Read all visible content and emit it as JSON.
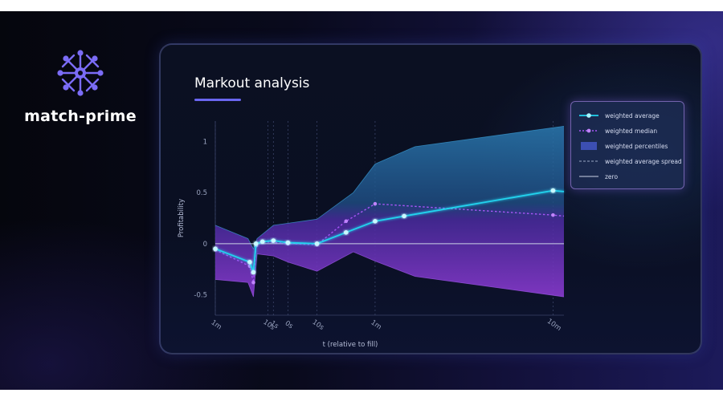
{
  "brand": {
    "name": "match-prime",
    "logo_icon": "network-star-icon",
    "accent": "#7b6cf6"
  },
  "panel": {
    "title": "Markout analysis"
  },
  "chart_data": {
    "type": "line",
    "title": "Markout analysis",
    "xlabel": "t (relative to fill)",
    "ylabel": "Profitability",
    "x_tick_labels": [
      "1m",
      "10s",
      "1s",
      "0s",
      "10s",
      "1m",
      "10m"
    ],
    "x_tick_positions": [
      0,
      1.45,
      1.6,
      2.0,
      2.8,
      4.4,
      9.3
    ],
    "y_ticks": [
      1,
      0.5,
      0,
      -0.5
    ],
    "xlim": [
      0,
      9.6
    ],
    "ylim": [
      -0.7,
      1.2
    ],
    "grid": "vertical dashed at x ticks",
    "legend_placement": "top-right",
    "series": [
      {
        "name": "weighted average",
        "color": "#22d3ee",
        "style": "solid",
        "marker": "circle",
        "points": [
          [
            0,
            -0.05
          ],
          [
            0.95,
            -0.18
          ],
          [
            1.05,
            -0.28
          ],
          [
            1.12,
            0.0
          ],
          [
            1.3,
            0.02
          ],
          [
            1.6,
            0.03
          ],
          [
            2.0,
            0.01
          ],
          [
            2.8,
            0.0
          ],
          [
            3.6,
            0.11
          ],
          [
            4.4,
            0.22
          ],
          [
            5.2,
            0.27
          ],
          [
            9.3,
            0.52
          ],
          [
            9.6,
            0.51
          ]
        ]
      },
      {
        "name": "weighted median",
        "color": "#a855f7",
        "style": "dashed",
        "marker": "circle",
        "points": [
          [
            0,
            -0.06
          ],
          [
            0.95,
            -0.22
          ],
          [
            1.05,
            -0.38
          ],
          [
            1.12,
            -0.02
          ],
          [
            1.3,
            0.02
          ],
          [
            2.0,
            0.0
          ],
          [
            2.8,
            -0.01
          ],
          [
            3.6,
            0.22
          ],
          [
            4.4,
            0.39
          ],
          [
            9.3,
            0.28
          ],
          [
            9.6,
            0.27
          ]
        ]
      },
      {
        "name": "weighted percentiles",
        "type": "band",
        "upper_color": "#1e5a8a",
        "lower_color": "#6a2fb0",
        "upper": [
          [
            0,
            0.18
          ],
          [
            0.9,
            0.05
          ],
          [
            1.05,
            -0.05
          ],
          [
            1.15,
            0.05
          ],
          [
            1.6,
            0.18
          ],
          [
            2.0,
            0.2
          ],
          [
            2.8,
            0.24
          ],
          [
            3.8,
            0.5
          ],
          [
            4.4,
            0.78
          ],
          [
            5.5,
            0.95
          ],
          [
            9.6,
            1.15
          ]
        ],
        "lower": [
          [
            0,
            -0.35
          ],
          [
            0.9,
            -0.38
          ],
          [
            1.05,
            -0.52
          ],
          [
            1.15,
            -0.1
          ],
          [
            1.6,
            -0.12
          ],
          [
            2.0,
            -0.18
          ],
          [
            2.8,
            -0.27
          ],
          [
            3.8,
            -0.08
          ],
          [
            4.4,
            -0.17
          ],
          [
            5.5,
            -0.32
          ],
          [
            9.6,
            -0.52
          ]
        ]
      },
      {
        "name": "weighted average spread",
        "color": "#9aa6c4",
        "style": "dashed"
      },
      {
        "name": "zero",
        "color": "#cbd2e6",
        "style": "solid",
        "y": 0
      }
    ]
  }
}
